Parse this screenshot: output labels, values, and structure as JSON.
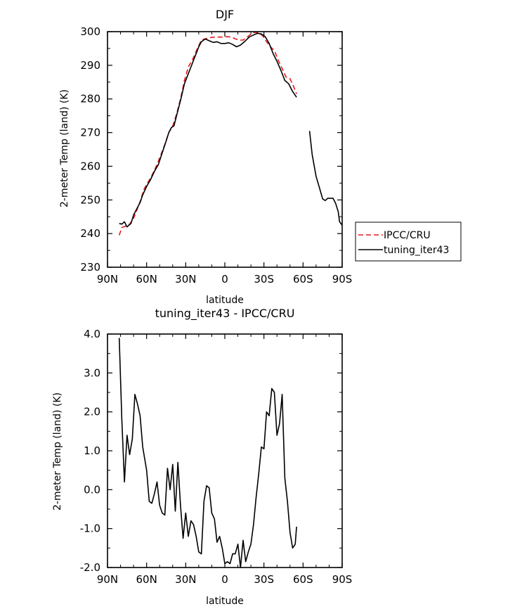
{
  "chart_data": [
    {
      "type": "line",
      "title": "DJF",
      "xlabel": "latitude",
      "ylabel": "2-meter Temp (land) (K)",
      "xlim": [
        90,
        -90
      ],
      "ylim": [
        230,
        300
      ],
      "xticks": [
        90,
        60,
        30,
        0,
        -30,
        -60,
        -90
      ],
      "xtick_labels": [
        "90N",
        "60N",
        "30N",
        "0",
        "30S",
        "60S",
        "90S"
      ],
      "yticks": [
        230,
        240,
        250,
        260,
        270,
        280,
        290,
        300
      ],
      "ytick_labels": [
        "230",
        "240",
        "250",
        "260",
        "270",
        "280",
        "290",
        "300"
      ],
      "legend": {
        "position": "right",
        "entries": [
          "IPCC/CRU",
          "tuning_iter43"
        ]
      },
      "series": [
        {
          "name": "IPCC/CRU",
          "color": "#e41a1c",
          "dash": "dashed",
          "segments": [
            [
              [
                81,
                239.5
              ],
              [
                79,
                241.8
              ],
              [
                76,
                242.2
              ],
              [
                73,
                242.8
              ],
              [
                70,
                244.5
              ],
              [
                67,
                247.5
              ],
              [
                65,
                249.5
              ],
              [
                62,
                253.2
              ],
              [
                59,
                255.2
              ],
              [
                56,
                257.2
              ],
              [
                52,
                260.5
              ],
              [
                49,
                263.5
              ],
              [
                46,
                266.5
              ],
              [
                43,
                270.0
              ],
              [
                40,
                272.0
              ],
              [
                37,
                275.5
              ],
              [
                34,
                280.0
              ],
              [
                31,
                285.5
              ],
              [
                28,
                289.5
              ],
              [
                25,
                291.5
              ],
              [
                21,
                295.0
              ],
              [
                18,
                297.5
              ],
              [
                14,
                298.0
              ],
              [
                10,
                298.3
              ],
              [
                6,
                298.4
              ],
              [
                2,
                298.4
              ],
              [
                -2,
                298.5
              ],
              [
                -5,
                298.4
              ],
              [
                -8,
                297.9
              ],
              [
                -11,
                297.5
              ],
              [
                -14,
                297.5
              ],
              [
                -17,
                298.3
              ],
              [
                -20,
                299.3
              ],
              [
                -23,
                299.8
              ],
              [
                -26,
                299.6
              ],
              [
                -29,
                298.8
              ],
              [
                -32,
                297.0
              ],
              [
                -35,
                295.5
              ],
              [
                -38,
                294.4
              ],
              [
                -41,
                291.5
              ],
              [
                -44,
                289.0
              ],
              [
                -47,
                286.5
              ],
              [
                -50,
                286.0
              ],
              [
                -53,
                283.5
              ],
              [
                -55,
                281.5
              ]
            ]
          ]
        },
        {
          "name": "tuning_iter43",
          "color": "#000000",
          "dash": "solid",
          "segments": [
            [
              [
                81,
                243.0
              ],
              [
                79,
                242.8
              ],
              [
                77,
                243.5
              ],
              [
                75,
                242.0
              ],
              [
                72,
                243.0
              ],
              [
                70,
                245.5
              ],
              [
                68,
                247.0
              ],
              [
                65,
                249.2
              ],
              [
                63,
                251.5
              ],
              [
                60,
                254.0
              ],
              [
                57,
                256.0
              ],
              [
                54,
                258.5
              ],
              [
                51,
                260.5
              ],
              [
                48,
                264.0
              ],
              [
                45,
                267.5
              ],
              [
                43,
                270.0
              ],
              [
                41,
                271.5
              ],
              [
                39,
                272.0
              ],
              [
                37,
                275.0
              ],
              [
                34,
                279.5
              ],
              [
                31,
                284.5
              ],
              [
                28,
                287.5
              ],
              [
                25,
                290.5
              ],
              [
                22,
                293.5
              ],
              [
                20,
                295.5
              ],
              [
                18,
                297.0
              ],
              [
                15,
                297.8
              ],
              [
                12,
                297.3
              ],
              [
                9,
                296.8
              ],
              [
                6,
                297.0
              ],
              [
                3,
                296.5
              ],
              [
                0,
                296.5
              ],
              [
                -3,
                296.7
              ],
              [
                -6,
                296.2
              ],
              [
                -9,
                295.5
              ],
              [
                -12,
                296.0
              ],
              [
                -15,
                297.0
              ],
              [
                -19,
                298.5
              ],
              [
                -22,
                299.0
              ],
              [
                -25,
                299.5
              ],
              [
                -28,
                299.3
              ],
              [
                -31,
                298.5
              ],
              [
                -34,
                296.5
              ],
              [
                -37,
                293.5
              ],
              [
                -40,
                291.2
              ],
              [
                -43,
                288.5
              ],
              [
                -46,
                285.5
              ],
              [
                -49,
                284.5
              ],
              [
                -52,
                282.2
              ],
              [
                -55,
                280.5
              ]
            ],
            [
              [
                -65,
                270.5
              ],
              [
                -67,
                263.5
              ],
              [
                -70,
                257.0
              ],
              [
                -73,
                253.0
              ],
              [
                -75,
                250.3
              ],
              [
                -77,
                249.8
              ],
              [
                -79,
                250.5
              ],
              [
                -81,
                250.5
              ],
              [
                -83,
                250.5
              ],
              [
                -85,
                249.0
              ],
              [
                -87,
                246.5
              ],
              [
                -88,
                243.5
              ],
              [
                -90,
                242.5
              ]
            ]
          ]
        }
      ]
    },
    {
      "type": "line",
      "title": "tuning_iter43 - IPCC/CRU",
      "xlabel": "latitude",
      "ylabel": "2-meter Temp (land) (K)",
      "xlim": [
        90,
        -90
      ],
      "ylim": [
        -2.0,
        4.0
      ],
      "xticks": [
        90,
        60,
        30,
        0,
        -30,
        -60,
        -90
      ],
      "xtick_labels": [
        "90N",
        "60N",
        "30N",
        "0",
        "30S",
        "60S",
        "90S"
      ],
      "yticks": [
        -2.0,
        -1.0,
        0.0,
        1.0,
        2.0,
        3.0,
        4.0
      ],
      "ytick_labels": [
        "-2.0",
        "-1.0",
        "0.0",
        "1.0",
        "2.0",
        "3.0",
        "4.0"
      ],
      "series": [
        {
          "name": "tuning_iter43 - IPCC/CRU",
          "color": "#000000",
          "dash": "solid",
          "segments": [
            [
              [
                81,
                3.9
              ],
              [
                79,
                1.8
              ],
              [
                77,
                0.2
              ],
              [
                75,
                1.4
              ],
              [
                73,
                0.9
              ],
              [
                71,
                1.3
              ],
              [
                69,
                2.45
              ],
              [
                67,
                2.2
              ],
              [
                65,
                1.9
              ],
              [
                63,
                1.1
              ],
              [
                60,
                0.5
              ],
              [
                58,
                -0.3
              ],
              [
                56,
                -0.35
              ],
              [
                54,
                -0.1
              ],
              [
                52,
                0.2
              ],
              [
                50,
                -0.4
              ],
              [
                48,
                -0.6
              ],
              [
                46,
                -0.65
              ],
              [
                44,
                0.55
              ],
              [
                42,
                0.0
              ],
              [
                40,
                0.65
              ],
              [
                38,
                -0.55
              ],
              [
                36,
                0.7
              ],
              [
                34,
                -0.4
              ],
              [
                32,
                -1.25
              ],
              [
                30,
                -0.6
              ],
              [
                28,
                -1.2
              ],
              [
                26,
                -0.8
              ],
              [
                24,
                -0.9
              ],
              [
                22,
                -1.2
              ],
              [
                20,
                -1.6
              ],
              [
                18,
                -1.65
              ],
              [
                16,
                -0.3
              ],
              [
                14,
                0.1
              ],
              [
                12,
                0.05
              ],
              [
                10,
                -0.6
              ],
              [
                8,
                -0.75
              ],
              [
                6,
                -1.35
              ],
              [
                4,
                -1.2
              ],
              [
                2,
                -1.5
              ],
              [
                0,
                -1.9
              ],
              [
                -2,
                -1.85
              ],
              [
                -4,
                -1.9
              ],
              [
                -6,
                -1.65
              ],
              [
                -8,
                -1.65
              ],
              [
                -10,
                -1.4
              ],
              [
                -12,
                -2.0
              ],
              [
                -14,
                -1.3
              ],
              [
                -16,
                -1.85
              ],
              [
                -18,
                -1.6
              ],
              [
                -20,
                -1.4
              ],
              [
                -22,
                -0.9
              ],
              [
                -24,
                -0.2
              ],
              [
                -26,
                0.4
              ],
              [
                -28,
                1.1
              ],
              [
                -30,
                1.05
              ],
              [
                -32,
                2.0
              ],
              [
                -34,
                1.9
              ],
              [
                -36,
                2.6
              ],
              [
                -38,
                2.5
              ],
              [
                -40,
                1.4
              ],
              [
                -42,
                1.7
              ],
              [
                -44,
                2.45
              ],
              [
                -46,
                0.3
              ],
              [
                -48,
                -0.3
              ],
              [
                -50,
                -1.1
              ],
              [
                -52,
                -1.5
              ],
              [
                -54,
                -1.4
              ],
              [
                -55,
                -0.95
              ]
            ]
          ]
        }
      ]
    }
  ]
}
